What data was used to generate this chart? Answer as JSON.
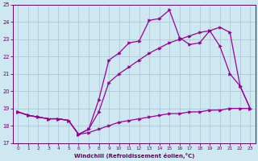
{
  "xlabel": "Windchill (Refroidissement éolien,°C)",
  "background_color": "#cde8f0",
  "grid_color": "#b0c8d8",
  "line_color": "#990099",
  "xlim": [
    -0.5,
    23.5
  ],
  "ylim": [
    17,
    25
  ],
  "yticks": [
    17,
    18,
    19,
    20,
    21,
    22,
    23,
    24,
    25
  ],
  "xticks": [
    0,
    1,
    2,
    3,
    4,
    5,
    6,
    7,
    8,
    9,
    10,
    11,
    12,
    13,
    14,
    15,
    16,
    17,
    18,
    19,
    20,
    21,
    22,
    23
  ],
  "line1_x": [
    0,
    1,
    2,
    3,
    4,
    5,
    6,
    7,
    8,
    9,
    10,
    11,
    12,
    13,
    14,
    15,
    16,
    17,
    18,
    19,
    20,
    21,
    22,
    23
  ],
  "line1_y": [
    18.8,
    18.6,
    18.5,
    18.4,
    18.4,
    18.3,
    17.5,
    17.6,
    17.8,
    18.0,
    18.2,
    18.3,
    18.4,
    18.5,
    18.6,
    18.7,
    18.7,
    18.8,
    18.8,
    18.9,
    18.9,
    19.0,
    19.0,
    19.0
  ],
  "line2_x": [
    0,
    1,
    2,
    3,
    4,
    5,
    6,
    7,
    8,
    9,
    10,
    11,
    12,
    13,
    14,
    15,
    16,
    17,
    18,
    19,
    20,
    21,
    22,
    23
  ],
  "line2_y": [
    18.8,
    18.6,
    18.5,
    18.4,
    18.4,
    18.3,
    17.5,
    17.8,
    18.8,
    20.5,
    21.0,
    21.4,
    21.8,
    22.2,
    22.5,
    22.8,
    23.0,
    23.2,
    23.4,
    23.5,
    22.6,
    21.0,
    20.3,
    19.0
  ],
  "line3_x": [
    0,
    1,
    2,
    3,
    4,
    5,
    6,
    7,
    8,
    9,
    10,
    11,
    12,
    13,
    14,
    15,
    16,
    17,
    18,
    19,
    20,
    21,
    22,
    23
  ],
  "line3_y": [
    18.8,
    18.6,
    18.5,
    18.4,
    18.4,
    18.3,
    17.5,
    17.8,
    19.5,
    21.8,
    22.2,
    22.8,
    22.9,
    24.1,
    24.2,
    24.7,
    23.1,
    22.7,
    22.8,
    23.5,
    23.7,
    23.4,
    20.3,
    19.0
  ]
}
